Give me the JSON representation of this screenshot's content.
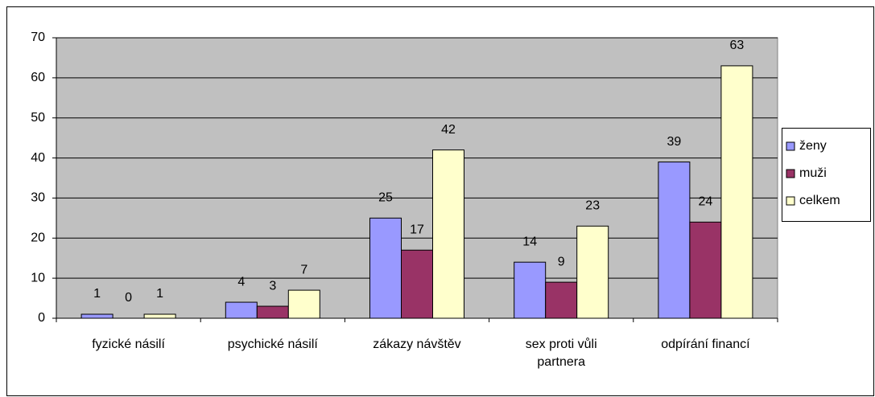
{
  "chart_data": {
    "type": "bar",
    "categories": [
      "fyzické násilí",
      "psychické násilí",
      "zákazy návštěv",
      "sex proti vůli partnera",
      "odpírání financí"
    ],
    "series": [
      {
        "name": "ženy",
        "color": "#9999ff",
        "values": [
          1,
          4,
          25,
          14,
          39
        ]
      },
      {
        "name": "muži",
        "color": "#993366",
        "values": [
          0,
          3,
          17,
          9,
          24
        ]
      },
      {
        "name": "celkem",
        "color": "#ffffcc",
        "values": [
          1,
          7,
          42,
          23,
          63
        ]
      }
    ],
    "ylim": [
      0,
      70
    ],
    "yticks": [
      0,
      10,
      20,
      30,
      40,
      50,
      60,
      70
    ],
    "grid": true,
    "legend": "right"
  }
}
